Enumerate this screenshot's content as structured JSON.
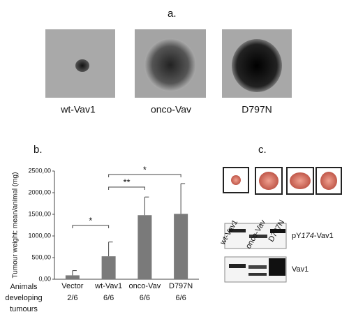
{
  "panels": {
    "a": {
      "label": "a.",
      "captions": [
        "wt-Vav1",
        "onco-Vav",
        "D797N"
      ]
    },
    "c": {
      "label": "c.",
      "lanes": [
        "wt-Vav1",
        "onco-Vav",
        "D797N"
      ],
      "blot_labels": [
        [
          "pY",
          "174",
          "-Vav1"
        ],
        [
          "Vav1"
        ]
      ]
    }
  },
  "chart_data": {
    "type": "bar",
    "panel_label": "b.",
    "y_label": "Tumour weight: mean/animal (mg)",
    "categories": [
      "Vector",
      "wt-Vav1",
      "onco-Vav",
      "D797N"
    ],
    "values": [
      90,
      530,
      1480,
      1510
    ],
    "errors": [
      110,
      330,
      420,
      700
    ],
    "color": "#7a7a7a",
    "ylim": [
      0,
      2500
    ],
    "yticks": [
      {
        "value": 0,
        "label": "0,00"
      },
      {
        "value": 500,
        "label": "500,00"
      },
      {
        "value": 1000,
        "label": "1000,00"
      },
      {
        "value": 1500,
        "label": "1500,00"
      },
      {
        "value": 2000,
        "label": "2000,00"
      },
      {
        "value": 2500,
        "label": "2500,00"
      }
    ],
    "row_label": [
      "Animals",
      "developing",
      "tumours"
    ],
    "row_values": [
      "2/6",
      "6/6",
      "6/6",
      "6/6"
    ],
    "annotations": [
      "*",
      "**",
      "*"
    ]
  }
}
